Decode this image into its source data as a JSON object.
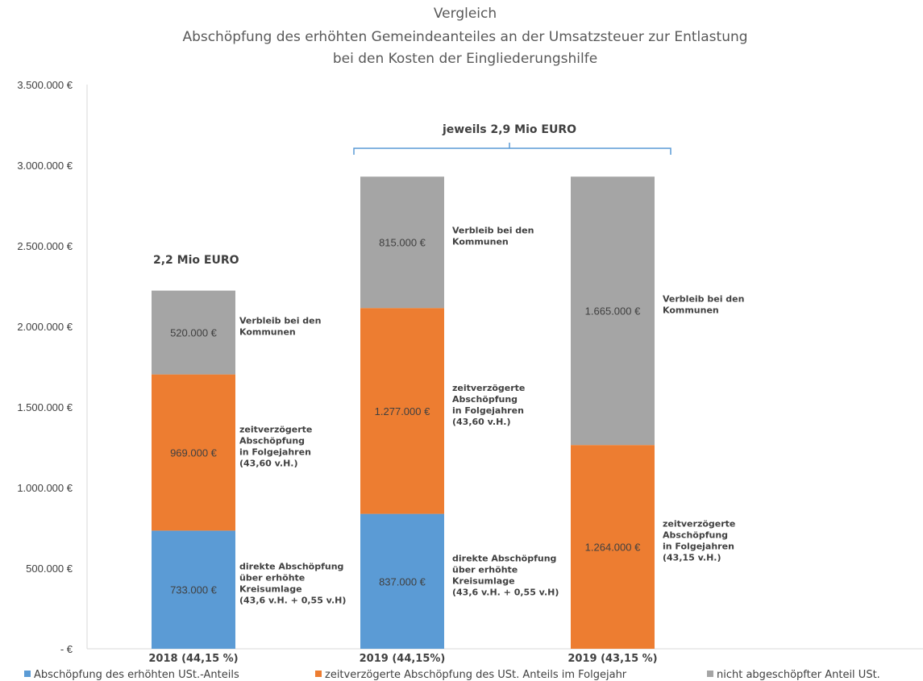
{
  "chart_data": {
    "type": "bar",
    "stacked": true,
    "title": [
      "Vergleich",
      "Abschöpfung des erhöhten Gemeindeanteiles an der Umsatzsteuer zur Entlastung",
      "bei den Kosten der Eingliederungshilfe"
    ],
    "categories": [
      "2018 (44,15 %)",
      "2019 (44,15%)",
      "2019 (43,15 %)"
    ],
    "ylim": [
      0,
      3500000
    ],
    "yticks": [
      {
        "value": 0,
        "label": "- €"
      },
      {
        "value": 500000,
        "label": "500.000 €"
      },
      {
        "value": 1000000,
        "label": "1.000.000 €"
      },
      {
        "value": 1500000,
        "label": "1.500.000 €"
      },
      {
        "value": 2000000,
        "label": "2.000.000 €"
      },
      {
        "value": 2500000,
        "label": "2.500.000 €"
      },
      {
        "value": 3000000,
        "label": "3.000.000 €"
      },
      {
        "value": 3500000,
        "label": "3.500.000 €"
      }
    ],
    "grid": false,
    "legend_position": "bottom",
    "series": [
      {
        "name": "Abschöpfung des erhöhten USt.-Anteils",
        "color": "#5b9bd5",
        "values": [
          733000,
          837000,
          0
        ],
        "labels": [
          "733.000 €",
          "837.000 €",
          ""
        ]
      },
      {
        "name": "zeitverzögerte Abschöpfung des USt. Anteils im Folgejahr",
        "color": "#ed7d31",
        "values": [
          969000,
          1277000,
          1264000
        ],
        "labels": [
          "969.000 €",
          "1.277.000 €",
          "1.264.000 €"
        ]
      },
      {
        "name": "nicht abgeschöpfter Anteil USt.",
        "color": "#a5a5a5",
        "values": [
          520000,
          815000,
          1665000
        ],
        "labels": [
          "520.000 €",
          "815.000 €",
          "1.665.000 €"
        ]
      }
    ],
    "annotations": [
      {
        "bar": 0,
        "segment": 0,
        "lines": [
          "direkte Abschöpfung",
          "über erhöhte",
          "Kreisumlage",
          "(43,6 v.H. + 0,55 v.H)"
        ]
      },
      {
        "bar": 0,
        "segment": 1,
        "lines": [
          "zeitverzögerte",
          "Abschöpfung",
          "in Folgejahren",
          "(43,60 v.H.)"
        ]
      },
      {
        "bar": 0,
        "segment": 2,
        "lines": [
          "Verbleib bei den",
          "Kommunen"
        ]
      },
      {
        "bar": 1,
        "segment": 0,
        "lines": [
          "direkte Abschöpfung",
          "über erhöhte",
          "Kreisumlage",
          "(43,6 v.H. + 0,55 v.H)"
        ]
      },
      {
        "bar": 1,
        "segment": 1,
        "lines": [
          "zeitverzögerte",
          "Abschöpfung",
          "in Folgejahren",
          "(43,60 v.H.)"
        ]
      },
      {
        "bar": 1,
        "segment": 2,
        "lines": [
          "Verbleib bei den",
          "Kommunen"
        ]
      },
      {
        "bar": 2,
        "segment": 1,
        "lines": [
          "zeitverzögerte",
          "Abschöpfung",
          "in Folgejahren",
          "(43,15 v.H.)"
        ]
      },
      {
        "bar": 2,
        "segment": 2,
        "lines": [
          "Verbleib bei den",
          "Kommunen"
        ]
      }
    ],
    "total_label_2018": "2,2 Mio EURO",
    "bracket_label_2019": "jeweils 2,9 Mio EURO"
  }
}
